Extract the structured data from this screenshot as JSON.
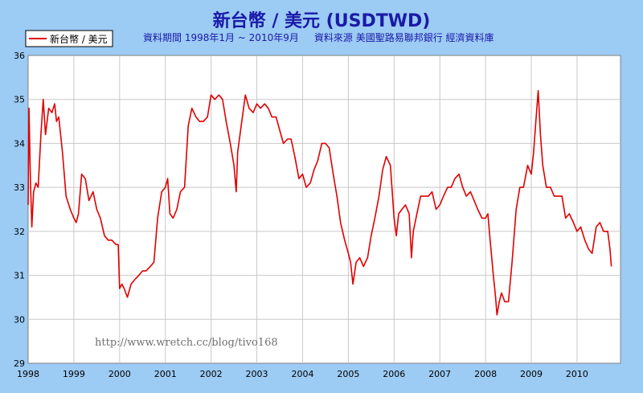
{
  "title": "新台幣 / 美元 (USDTWD)",
  "subtitle": "資料期間 1998年1月 ~ 2010年9月     資料來源 美國聖路易聯邦銀行 經濟資料庫",
  "watermark": "http://www.wretch.cc/blog/tivo168",
  "colors": {
    "background": "#9ccbf4",
    "plot_bg": "#ffffff",
    "line": "#e00000",
    "title": "#1a1aa8",
    "grid": "#c8c8c8"
  },
  "chart_data": {
    "type": "line",
    "title": "新台幣 / 美元 (USDTWD)",
    "xlabel": "",
    "ylabel": "",
    "xlim": [
      1998.0,
      2010.95
    ],
    "ylim": [
      29,
      36
    ],
    "grid": true,
    "legend_position": "top-left",
    "x_ticks": [
      "1998",
      "1999",
      "2000",
      "2001",
      "2002",
      "2003",
      "2004",
      "2005",
      "2006",
      "2007",
      "2008",
      "2009",
      "2010"
    ],
    "y_ticks": [
      "29",
      "30",
      "31",
      "32",
      "33",
      "34",
      "35",
      "36"
    ],
    "series": [
      {
        "name": "新台幣 / 美元",
        "color": "#e00000",
        "points": [
          [
            1998.0,
            32.6
          ],
          [
            1998.02,
            34.8
          ],
          [
            1998.05,
            33.2
          ],
          [
            1998.08,
            32.1
          ],
          [
            1998.12,
            32.9
          ],
          [
            1998.17,
            33.1
          ],
          [
            1998.22,
            33.0
          ],
          [
            1998.28,
            34.2
          ],
          [
            1998.33,
            35.0
          ],
          [
            1998.38,
            34.2
          ],
          [
            1998.45,
            34.8
          ],
          [
            1998.52,
            34.7
          ],
          [
            1998.58,
            34.9
          ],
          [
            1998.62,
            34.5
          ],
          [
            1998.67,
            34.6
          ],
          [
            1998.75,
            33.8
          ],
          [
            1998.83,
            32.8
          ],
          [
            1998.92,
            32.5
          ],
          [
            1999.0,
            32.3
          ],
          [
            1999.05,
            32.2
          ],
          [
            1999.1,
            32.4
          ],
          [
            1999.17,
            33.3
          ],
          [
            1999.25,
            33.2
          ],
          [
            1999.33,
            32.7
          ],
          [
            1999.42,
            32.9
          ],
          [
            1999.5,
            32.5
          ],
          [
            1999.58,
            32.3
          ],
          [
            1999.67,
            31.9
          ],
          [
            1999.75,
            31.8
          ],
          [
            1999.83,
            31.8
          ],
          [
            1999.92,
            31.7
          ],
          [
            1999.97,
            31.7
          ],
          [
            2000.0,
            30.7
          ],
          [
            2000.05,
            30.8
          ],
          [
            2000.1,
            30.7
          ],
          [
            2000.17,
            30.5
          ],
          [
            2000.25,
            30.8
          ],
          [
            2000.33,
            30.9
          ],
          [
            2000.42,
            31.0
          ],
          [
            2000.5,
            31.1
          ],
          [
            2000.58,
            31.1
          ],
          [
            2000.67,
            31.2
          ],
          [
            2000.75,
            31.3
          ],
          [
            2000.83,
            32.3
          ],
          [
            2000.92,
            32.9
          ],
          [
            2001.0,
            33.0
          ],
          [
            2001.05,
            33.2
          ],
          [
            2001.1,
            32.4
          ],
          [
            2001.17,
            32.3
          ],
          [
            2001.25,
            32.5
          ],
          [
            2001.33,
            32.9
          ],
          [
            2001.42,
            33.0
          ],
          [
            2001.5,
            34.4
          ],
          [
            2001.58,
            34.8
          ],
          [
            2001.67,
            34.6
          ],
          [
            2001.75,
            34.5
          ],
          [
            2001.83,
            34.5
          ],
          [
            2001.92,
            34.6
          ],
          [
            2002.0,
            35.1
          ],
          [
            2002.08,
            35.0
          ],
          [
            2002.17,
            35.1
          ],
          [
            2002.25,
            35.0
          ],
          [
            2002.33,
            34.5
          ],
          [
            2002.42,
            34.0
          ],
          [
            2002.5,
            33.5
          ],
          [
            2002.55,
            32.9
          ],
          [
            2002.58,
            33.8
          ],
          [
            2002.67,
            34.5
          ],
          [
            2002.75,
            35.1
          ],
          [
            2002.83,
            34.8
          ],
          [
            2002.92,
            34.7
          ],
          [
            2003.0,
            34.9
          ],
          [
            2003.08,
            34.8
          ],
          [
            2003.17,
            34.9
          ],
          [
            2003.25,
            34.8
          ],
          [
            2003.33,
            34.6
          ],
          [
            2003.42,
            34.6
          ],
          [
            2003.5,
            34.3
          ],
          [
            2003.58,
            34.0
          ],
          [
            2003.67,
            34.1
          ],
          [
            2003.75,
            34.1
          ],
          [
            2003.83,
            33.7
          ],
          [
            2003.92,
            33.2
          ],
          [
            2004.0,
            33.3
          ],
          [
            2004.08,
            33.0
          ],
          [
            2004.17,
            33.1
          ],
          [
            2004.25,
            33.4
          ],
          [
            2004.33,
            33.6
          ],
          [
            2004.42,
            34.0
          ],
          [
            2004.5,
            34.0
          ],
          [
            2004.58,
            33.9
          ],
          [
            2004.67,
            33.3
          ],
          [
            2004.75,
            32.8
          ],
          [
            2004.83,
            32.2
          ],
          [
            2004.92,
            31.8
          ],
          [
            2005.0,
            31.5
          ],
          [
            2005.05,
            31.3
          ],
          [
            2005.1,
            30.8
          ],
          [
            2005.17,
            31.3
          ],
          [
            2005.25,
            31.4
          ],
          [
            2005.33,
            31.2
          ],
          [
            2005.42,
            31.4
          ],
          [
            2005.5,
            31.9
          ],
          [
            2005.58,
            32.3
          ],
          [
            2005.67,
            32.8
          ],
          [
            2005.75,
            33.4
          ],
          [
            2005.83,
            33.7
          ],
          [
            2005.92,
            33.5
          ],
          [
            2006.0,
            32.3
          ],
          [
            2006.05,
            31.9
          ],
          [
            2006.1,
            32.4
          ],
          [
            2006.17,
            32.5
          ],
          [
            2006.25,
            32.6
          ],
          [
            2006.33,
            32.4
          ],
          [
            2006.38,
            31.4
          ],
          [
            2006.42,
            32.0
          ],
          [
            2006.5,
            32.4
          ],
          [
            2006.58,
            32.8
          ],
          [
            2006.67,
            32.8
          ],
          [
            2006.75,
            32.8
          ],
          [
            2006.83,
            32.9
          ],
          [
            2006.92,
            32.5
          ],
          [
            2007.0,
            32.6
          ],
          [
            2007.08,
            32.8
          ],
          [
            2007.17,
            33.0
          ],
          [
            2007.25,
            33.0
          ],
          [
            2007.33,
            33.2
          ],
          [
            2007.42,
            33.3
          ],
          [
            2007.5,
            33.0
          ],
          [
            2007.58,
            32.8
          ],
          [
            2007.67,
            32.9
          ],
          [
            2007.75,
            32.7
          ],
          [
            2007.83,
            32.5
          ],
          [
            2007.92,
            32.3
          ],
          [
            2008.0,
            32.3
          ],
          [
            2008.05,
            32.4
          ],
          [
            2008.1,
            31.8
          ],
          [
            2008.17,
            31.0
          ],
          [
            2008.22,
            30.5
          ],
          [
            2008.25,
            30.1
          ],
          [
            2008.3,
            30.4
          ],
          [
            2008.35,
            30.6
          ],
          [
            2008.42,
            30.4
          ],
          [
            2008.5,
            30.4
          ],
          [
            2008.58,
            31.3
          ],
          [
            2008.67,
            32.5
          ],
          [
            2008.75,
            33.0
          ],
          [
            2008.83,
            33.0
          ],
          [
            2008.92,
            33.5
          ],
          [
            2009.0,
            33.3
          ],
          [
            2009.05,
            33.8
          ],
          [
            2009.1,
            34.5
          ],
          [
            2009.15,
            35.2
          ],
          [
            2009.2,
            34.2
          ],
          [
            2009.25,
            33.5
          ],
          [
            2009.33,
            33.0
          ],
          [
            2009.42,
            33.0
          ],
          [
            2009.5,
            32.8
          ],
          [
            2009.58,
            32.8
          ],
          [
            2009.67,
            32.8
          ],
          [
            2009.75,
            32.3
          ],
          [
            2009.83,
            32.4
          ],
          [
            2009.92,
            32.2
          ],
          [
            2010.0,
            32.0
          ],
          [
            2010.08,
            32.1
          ],
          [
            2010.17,
            31.8
          ],
          [
            2010.25,
            31.6
          ],
          [
            2010.33,
            31.5
          ],
          [
            2010.42,
            32.1
          ],
          [
            2010.5,
            32.2
          ],
          [
            2010.58,
            32.0
          ],
          [
            2010.67,
            32.0
          ],
          [
            2010.72,
            31.6
          ],
          [
            2010.75,
            31.2
          ]
        ]
      }
    ]
  }
}
